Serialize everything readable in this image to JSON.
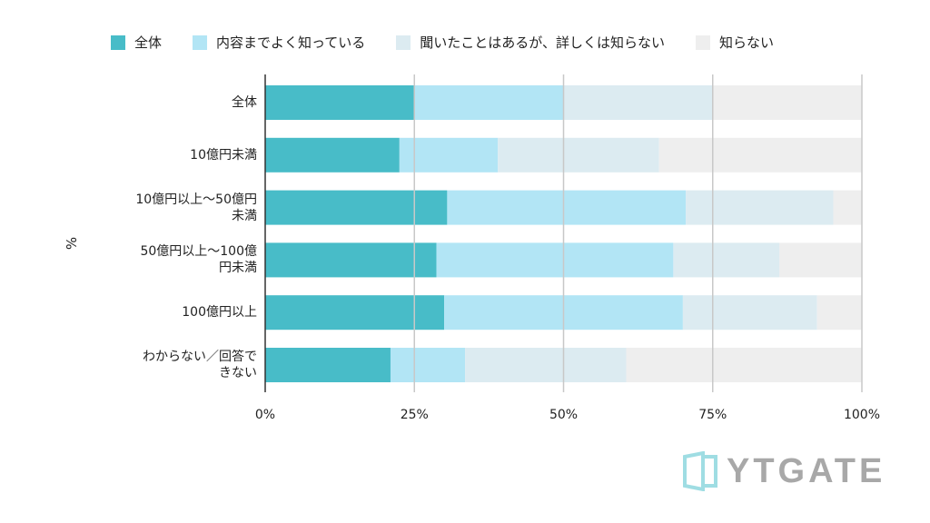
{
  "legend": {
    "items": [
      {
        "label": "全体",
        "color": "#48bcc8"
      },
      {
        "label": "内容までよく知っている",
        "color": "#b2e5f5"
      },
      {
        "label": "聞いたことはあるが、詳しくは知らない",
        "color": "#dcebf1"
      },
      {
        "label": "知らない",
        "color": "#eeeeee"
      }
    ]
  },
  "y_axis_title": "%",
  "logo": {
    "text": "YTGATE",
    "mark_color": "#9fdde3"
  },
  "chart_data": {
    "type": "bar",
    "orientation": "horizontal",
    "stacked": true,
    "xlim": [
      0,
      100
    ],
    "x_ticks": [
      "0%",
      "25%",
      "50%",
      "75%",
      "100%"
    ],
    "grid": true,
    "legend_position": "top",
    "categories": [
      "全体",
      "10億円未満",
      "10億円以上〜50億円\n未満",
      "50億円以上〜100億\n円未満",
      "100億円以上",
      "わからない／回答で\nきない"
    ],
    "series": [
      {
        "name": "全体",
        "color": "#48bcc8",
        "values": [
          25,
          22.5,
          30.5,
          28.7,
          30,
          21
        ]
      },
      {
        "name": "内容までよく知っている",
        "color": "#b2e5f5",
        "values": [
          25,
          16.5,
          40,
          39.7,
          40,
          12.5
        ]
      },
      {
        "name": "聞いたことはあるが、詳しくは知らない",
        "color": "#dcebf1",
        "values": [
          25,
          27,
          24.7,
          17.8,
          22.5,
          27
        ]
      },
      {
        "name": "知らない",
        "color": "#eeeeee",
        "values": [
          25,
          34,
          4.8,
          13.8,
          7.5,
          39.5
        ]
      }
    ]
  }
}
